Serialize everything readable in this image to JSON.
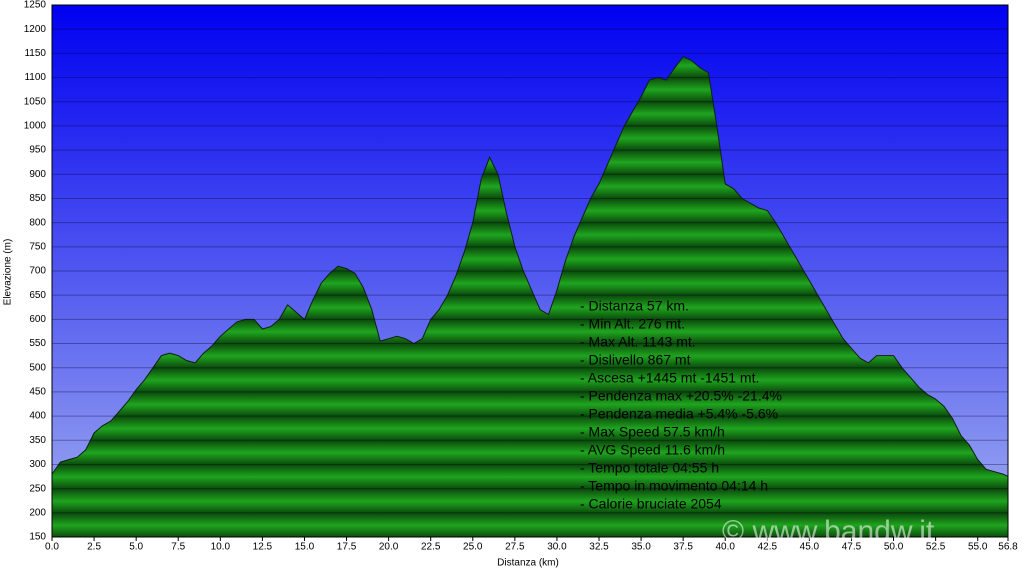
{
  "chart_data": {
    "type": "area",
    "x_label": "Distanza  (km)",
    "y_label": "Elevazione (m)",
    "x": [
      0,
      0.5,
      1,
      1.5,
      2,
      2.5,
      3,
      3.5,
      4,
      4.5,
      5,
      5.5,
      6,
      6.5,
      7,
      7.5,
      8,
      8.5,
      9,
      9.5,
      10,
      10.5,
      11,
      11.5,
      12,
      12.5,
      13,
      13.5,
      14,
      14.5,
      15,
      15.5,
      16,
      16.5,
      17,
      17.5,
      18,
      18.5,
      19,
      19.5,
      20,
      20.5,
      21,
      21.5,
      22,
      22.5,
      23,
      23.5,
      24,
      24.5,
      25,
      25.5,
      26,
      26.5,
      27,
      27.5,
      28,
      28.5,
      29,
      29.5,
      30,
      30.5,
      31,
      31.5,
      32,
      32.5,
      33,
      33.5,
      34,
      34.5,
      35,
      35.5,
      36,
      36.5,
      37,
      37.5,
      38,
      38.5,
      39,
      39.5,
      40,
      40.5,
      41,
      41.5,
      42,
      42.5,
      43,
      43.5,
      44,
      44.5,
      45,
      45.5,
      46,
      46.5,
      47,
      47.5,
      48,
      48.5,
      49,
      49.5,
      50,
      50.5,
      51,
      51.5,
      52,
      52.5,
      53,
      53.5,
      54,
      54.5,
      55,
      55.5,
      56,
      56.5,
      56.8
    ],
    "values": [
      280,
      305,
      310,
      315,
      330,
      365,
      380,
      390,
      410,
      430,
      455,
      475,
      500,
      525,
      530,
      525,
      515,
      510,
      530,
      545,
      565,
      580,
      595,
      600,
      600,
      580,
      585,
      600,
      630,
      615,
      600,
      640,
      675,
      695,
      710,
      705,
      695,
      665,
      620,
      555,
      560,
      565,
      560,
      550,
      560,
      600,
      620,
      650,
      690,
      740,
      800,
      890,
      935,
      900,
      820,
      750,
      700,
      660,
      620,
      610,
      660,
      720,
      770,
      810,
      850,
      880,
      920,
      960,
      1000,
      1030,
      1060,
      1095,
      1100,
      1095,
      1120,
      1143,
      1135,
      1120,
      1110,
      1000,
      880,
      870,
      850,
      840,
      830,
      825,
      800,
      770,
      740,
      710,
      680,
      650,
      620,
      590,
      560,
      540,
      520,
      510,
      525,
      525,
      525,
      500,
      480,
      460,
      445,
      435,
      420,
      395,
      360,
      340,
      310,
      290,
      285,
      280,
      275
    ],
    "color": "#1fa51f",
    "line_color": "#102010",
    "background_top": "#0000f0",
    "background_bottom": "#a0aef0",
    "grid": true,
    "xlim": [
      0,
      56.8
    ],
    "ylim": [
      150,
      1250
    ],
    "xticks": [
      {
        "value": 0,
        "label": "0.0"
      },
      2.5,
      {
        "value": 5,
        "label": "5.0"
      },
      7.5,
      {
        "value": 10,
        "label": "10.0"
      },
      12.5,
      {
        "value": 15,
        "label": "15.0"
      },
      17.5,
      {
        "value": 20,
        "label": "20.0"
      },
      22.5,
      {
        "value": 25,
        "label": "25.0"
      },
      27.5,
      {
        "value": 30,
        "label": "30.0"
      },
      32.5,
      {
        "value": 35,
        "label": "35.0"
      },
      37.5,
      {
        "value": 40,
        "label": "40.0"
      },
      42.5,
      {
        "value": 45,
        "label": "45.0"
      },
      47.5,
      {
        "value": 50,
        "label": "50.0"
      },
      52.5,
      {
        "value": 55,
        "label": "55.0"
      },
      56.8
    ],
    "yticks": [
      150,
      200,
      250,
      300,
      350,
      400,
      450,
      500,
      550,
      600,
      650,
      700,
      750,
      800,
      850,
      900,
      950,
      1000,
      1050,
      1100,
      1150,
      1200,
      1250
    ],
    "annotations": [
      "- Distanza 57 km.",
      "- Min Alt. 276 mt.",
      "- Max Alt. 1143 mt.",
      "- Dislivello 867 mt",
      "- Ascesa +1445 mt -1451 mt.",
      "- Pendenza max +20.5% -21.4%",
      "- Pendenza media +5.4% -5.6%",
      "- Max Speed 57.5 km/h",
      "- AVG Speed 11.6 km/h",
      "- Tempo totale 04:55 h",
      "- Tempo in movimento 04:14 h",
      "- Calorie bruciate 2054"
    ],
    "watermark": "© www.bandw.it"
  }
}
